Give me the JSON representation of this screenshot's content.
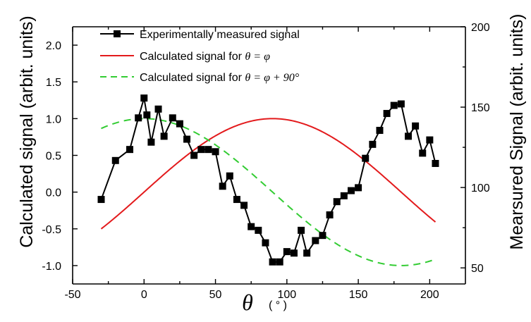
{
  "chart_data": {
    "type": "line",
    "xlabel_symbol": "θ",
    "xlabel_unit": "( ° )",
    "ylabel_left": "Calculated signal (arbit. units)",
    "ylabel_right": "Mearsured Signal (arbit. units)",
    "xlim": [
      -50,
      225
    ],
    "ylim_left": [
      -1.25,
      2.25
    ],
    "ylim_right": [
      40,
      200
    ],
    "x_ticks": [
      -50,
      0,
      50,
      100,
      150,
      200
    ],
    "x_tick_labels": [
      "-50",
      "0",
      "50",
      "100",
      "150",
      "200"
    ],
    "y_left_ticks": [
      -1.0,
      -0.5,
      0.0,
      0.5,
      1.0,
      1.5,
      2.0
    ],
    "y_left_tick_labels": [
      "-1.0",
      "-0.5",
      "0.0",
      "0.5",
      "1.0",
      "1.5",
      "2.0"
    ],
    "y_right_ticks": [
      50,
      100,
      150,
      200
    ],
    "y_right_tick_labels": [
      "50",
      "100",
      "150",
      "200"
    ],
    "legend": {
      "position": "top-left",
      "entries": [
        {
          "text": "Experimentally measured signal",
          "math": ""
        },
        {
          "text": "Calculated signal for ",
          "math": "θ = φ"
        },
        {
          "text": "Calculated signal for ",
          "math": "θ = φ + 90°"
        }
      ]
    },
    "series": [
      {
        "name": "Experimentally measured signal",
        "axis": "left",
        "style": "line+square",
        "color": "#000000",
        "x": [
          -30,
          -20,
          -10,
          -4,
          0,
          2,
          5,
          10,
          14,
          20,
          25,
          30,
          35,
          40,
          45,
          50,
          55,
          60,
          65,
          70,
          75,
          80,
          85,
          90,
          95,
          100,
          105,
          110,
          114,
          120,
          125,
          130,
          135,
          140,
          145,
          150,
          155,
          160,
          165,
          170,
          175,
          180,
          185,
          190,
          195,
          200,
          204
        ],
        "y": [
          -0.1,
          0.43,
          0.58,
          1.01,
          1.28,
          1.05,
          0.68,
          1.13,
          0.76,
          1.01,
          0.93,
          0.72,
          0.5,
          0.58,
          0.58,
          0.55,
          0.08,
          0.22,
          -0.1,
          -0.18,
          -0.47,
          -0.52,
          -0.69,
          -0.95,
          -0.95,
          -0.81,
          -0.83,
          -0.52,
          -0.83,
          -0.66,
          -0.59,
          -0.31,
          -0.13,
          -0.05,
          0.02,
          0.06,
          0.46,
          0.65,
          0.84,
          1.07,
          1.18,
          1.2,
          0.76,
          0.9,
          0.53,
          0.71,
          0.39
        ]
      },
      {
        "name": "Calculated signal for θ = φ",
        "axis": "left",
        "style": "line",
        "color": "#e31a1c",
        "formula": "y = sin(θ)",
        "x_range": [
          -30,
          204
        ]
      },
      {
        "name": "Calculated signal for θ = φ + 90°",
        "axis": "left",
        "style": "dashed",
        "color": "#33cc33",
        "formula": "y = cos(θ)",
        "x_range": [
          -30,
          204
        ]
      }
    ]
  }
}
